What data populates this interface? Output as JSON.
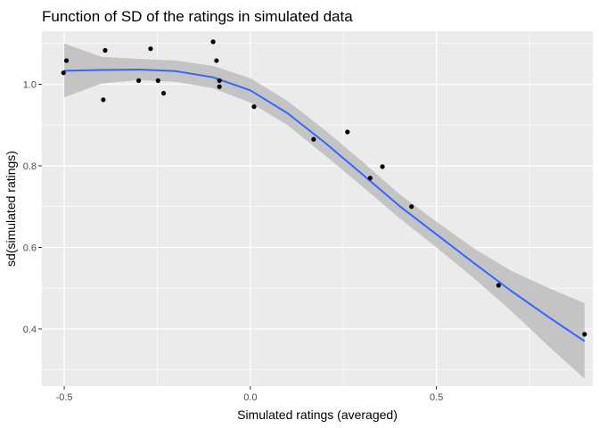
{
  "chart_data": {
    "type": "scatter",
    "title": "Function of SD of the ratings in simulated data",
    "xlabel": "Simulated ratings (averaged)",
    "ylabel": "sd(simulated ratings)",
    "xlim": [
      -0.56,
      0.92
    ],
    "ylim": [
      0.26,
      1.13
    ],
    "x_ticks": [
      -0.5,
      0.0,
      0.5
    ],
    "x_tick_labels": [
      "-0.5",
      "0.0",
      "0.5"
    ],
    "y_ticks": [
      0.4,
      0.6,
      0.8,
      1.0
    ],
    "y_tick_labels": [
      "0.4",
      "0.6",
      "0.8",
      "1.0"
    ],
    "grid": true,
    "points": [
      {
        "x": -0.502,
        "y": 1.028
      },
      {
        "x": -0.494,
        "y": 1.058
      },
      {
        "x": -0.395,
        "y": 0.962
      },
      {
        "x": -0.39,
        "y": 1.083
      },
      {
        "x": -0.3,
        "y": 1.009
      },
      {
        "x": -0.268,
        "y": 1.087
      },
      {
        "x": -0.248,
        "y": 1.009
      },
      {
        "x": -0.233,
        "y": 0.978
      },
      {
        "x": -0.1,
        "y": 1.104
      },
      {
        "x": -0.091,
        "y": 1.058
      },
      {
        "x": -0.083,
        "y": 1.009
      },
      {
        "x": -0.083,
        "y": 0.994
      },
      {
        "x": 0.01,
        "y": 0.945
      },
      {
        "x": 0.17,
        "y": 0.865
      },
      {
        "x": 0.261,
        "y": 0.883
      },
      {
        "x": 0.322,
        "y": 0.77
      },
      {
        "x": 0.355,
        "y": 0.798
      },
      {
        "x": 0.433,
        "y": 0.7
      },
      {
        "x": 0.667,
        "y": 0.507
      },
      {
        "x": 0.898,
        "y": 0.387
      }
    ],
    "smooth": [
      {
        "x": -0.5,
        "y": 1.033,
        "lo": 0.968,
        "hi": 1.1
      },
      {
        "x": -0.4,
        "y": 1.035,
        "lo": 1.002,
        "hi": 1.067
      },
      {
        "x": -0.3,
        "y": 1.036,
        "lo": 1.01,
        "hi": 1.062
      },
      {
        "x": -0.2,
        "y": 1.032,
        "lo": 1.006,
        "hi": 1.058
      },
      {
        "x": -0.1,
        "y": 1.017,
        "lo": 0.99,
        "hi": 1.045
      },
      {
        "x": 0.0,
        "y": 0.985,
        "lo": 0.955,
        "hi": 1.015
      },
      {
        "x": 0.1,
        "y": 0.929,
        "lo": 0.9,
        "hi": 0.959
      },
      {
        "x": 0.2,
        "y": 0.857,
        "lo": 0.826,
        "hi": 0.888
      },
      {
        "x": 0.3,
        "y": 0.78,
        "lo": 0.75,
        "hi": 0.811
      },
      {
        "x": 0.4,
        "y": 0.702,
        "lo": 0.672,
        "hi": 0.731
      },
      {
        "x": 0.5,
        "y": 0.632,
        "lo": 0.6,
        "hi": 0.663
      },
      {
        "x": 0.6,
        "y": 0.562,
        "lo": 0.525,
        "hi": 0.598
      },
      {
        "x": 0.7,
        "y": 0.494,
        "lo": 0.445,
        "hi": 0.543
      },
      {
        "x": 0.8,
        "y": 0.43,
        "lo": 0.359,
        "hi": 0.501
      },
      {
        "x": 0.898,
        "y": 0.37,
        "lo": 0.278,
        "hi": 0.463
      }
    ],
    "colors": {
      "panel": "#ebebeb",
      "grid_major": "#ffffff",
      "point": "#000000",
      "line": "#3366ff",
      "ribbon": "#bdbdbd",
      "tick": "#333333"
    }
  }
}
